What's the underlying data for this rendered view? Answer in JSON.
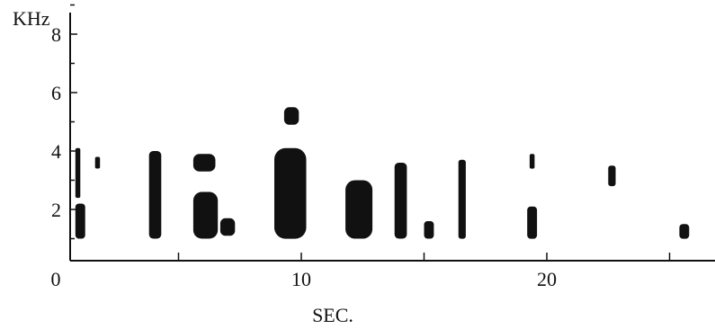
{
  "chart_data": {
    "type": "heatmap",
    "title": "",
    "ylabel": "KHz",
    "xlabel": "SEC.",
    "x_ticks": [
      0,
      10,
      20
    ],
    "x_tick_labels": [
      "0",
      "10",
      "20"
    ],
    "y_ticks": [
      2,
      4,
      6,
      8
    ],
    "y_tick_labels": [
      "2",
      "4",
      "6",
      "8"
    ],
    "xlim": [
      -1,
      26
    ],
    "ylim": [
      0,
      9
    ],
    "grid": false,
    "ink_color": "#111111",
    "blobs": [
      {
        "x0": 0.8,
        "x1": 1.2,
        "y0": 1.0,
        "y1": 2.2
      },
      {
        "x0": 0.8,
        "x1": 1.0,
        "y0": 2.4,
        "y1": 4.1
      },
      {
        "x0": 1.6,
        "x1": 1.8,
        "y0": 3.4,
        "y1": 3.8
      },
      {
        "x0": 3.8,
        "x1": 4.3,
        "y0": 1.0,
        "y1": 4.0
      },
      {
        "x0": 5.6,
        "x1": 6.6,
        "y0": 1.0,
        "y1": 2.6
      },
      {
        "x0": 5.6,
        "x1": 6.5,
        "y0": 3.3,
        "y1": 3.9
      },
      {
        "x0": 6.7,
        "x1": 7.3,
        "y0": 1.1,
        "y1": 1.7
      },
      {
        "x0": 8.9,
        "x1": 10.2,
        "y0": 1.0,
        "y1": 4.1
      },
      {
        "x0": 9.3,
        "x1": 9.9,
        "y0": 4.9,
        "y1": 5.5
      },
      {
        "x0": 11.8,
        "x1": 12.9,
        "y0": 1.0,
        "y1": 3.0
      },
      {
        "x0": 13.8,
        "x1": 14.3,
        "y0": 1.0,
        "y1": 3.6
      },
      {
        "x0": 15.0,
        "x1": 15.4,
        "y0": 1.0,
        "y1": 1.6
      },
      {
        "x0": 16.4,
        "x1": 16.7,
        "y0": 1.0,
        "y1": 3.7
      },
      {
        "x0": 19.2,
        "x1": 19.6,
        "y0": 1.0,
        "y1": 2.1
      },
      {
        "x0": 19.3,
        "x1": 19.5,
        "y0": 3.4,
        "y1": 3.9
      },
      {
        "x0": 22.5,
        "x1": 22.8,
        "y0": 2.8,
        "y1": 3.5
      },
      {
        "x0": 25.4,
        "x1": 25.8,
        "y0": 1.0,
        "y1": 1.5
      }
    ]
  }
}
